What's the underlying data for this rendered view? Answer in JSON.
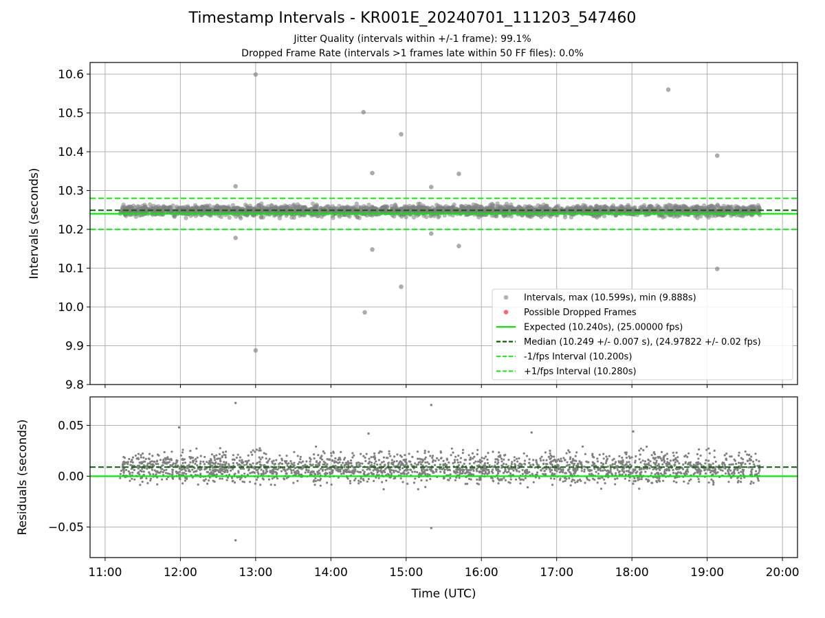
{
  "header": {
    "title": "Timestamp Intervals - KR001E_20240701_111203_547460",
    "subtitle_1": "Jitter Quality (intervals within +/-1 frame): 99.1%",
    "subtitle_2": "Dropped Frame Rate (intervals >1 frames late within 50 FF files): 0.0%"
  },
  "colors": {
    "scatter": "#808080",
    "dropped": "#ff0000",
    "expected": "#00ee00",
    "median": "#006400",
    "bounds": "#22ee22",
    "grid": "#b0b0b0"
  },
  "chart_data": [
    {
      "type": "scatter",
      "title": "Intervals",
      "xlabel": "",
      "ylabel": "Intervals (seconds)",
      "xlim": [
        "10:48",
        "20:12"
      ],
      "ylim": [
        9.8,
        10.63
      ],
      "y_ticks": [
        "9.8",
        "9.9",
        "10.0",
        "10.1",
        "10.2",
        "10.3",
        "10.4",
        "10.5",
        "10.6"
      ],
      "grid": true,
      "legend_position": "lower-right",
      "legend": [
        "Intervals, max (10.599s), min (9.888s)",
        "Possible Dropped Frames",
        "Expected (10.240s), (25.00000 fps)",
        "Median (10.249 +/- 0.007 s), (24.97822 +/- 0.02 fps)",
        "-1/fps Interval (10.200s)",
        "+1/fps Interval (10.280s)"
      ],
      "reference_lines": {
        "expected": 10.24,
        "median": 10.249,
        "lower_bound": 10.2,
        "upper_bound": 10.28
      },
      "dense_band": {
        "time_start": "11:12",
        "time_end": "19:42",
        "center": 10.248,
        "spread": 0.012
      },
      "outliers": [
        {
          "t": "12:44",
          "y": 10.311
        },
        {
          "t": "12:44",
          "y": 10.178
        },
        {
          "t": "13:00",
          "y": 10.599
        },
        {
          "t": "13:00",
          "y": 9.888
        },
        {
          "t": "14:26",
          "y": 10.502
        },
        {
          "t": "14:27",
          "y": 9.986
        },
        {
          "t": "14:33",
          "y": 10.345
        },
        {
          "t": "14:33",
          "y": 10.148
        },
        {
          "t": "14:56",
          "y": 10.445
        },
        {
          "t": "14:56",
          "y": 10.052
        },
        {
          "t": "15:20",
          "y": 10.309
        },
        {
          "t": "15:20",
          "y": 10.189
        },
        {
          "t": "15:42",
          "y": 10.343
        },
        {
          "t": "15:42",
          "y": 10.157
        },
        {
          "t": "18:29",
          "y": 10.56
        },
        {
          "t": "19:08",
          "y": 10.39
        },
        {
          "t": "19:08",
          "y": 10.098
        }
      ]
    },
    {
      "type": "scatter",
      "title": "Residuals",
      "xlabel": "Time (UTC)",
      "ylabel": "Residuals (seconds)",
      "xlim": [
        "10:48",
        "20:12"
      ],
      "ylim": [
        -0.08,
        0.078
      ],
      "y_ticks": [
        "−0.05",
        "0.00",
        "0.05"
      ],
      "x_ticks": [
        "11:00",
        "12:00",
        "13:00",
        "14:00",
        "15:00",
        "16:00",
        "17:00",
        "18:00",
        "19:00",
        "20:00"
      ],
      "grid": true,
      "reference_lines": {
        "zero": 0.0,
        "median": 0.009
      },
      "dense_band": {
        "time_start": "11:12",
        "time_end": "19:42",
        "center": 0.008,
        "spread": 0.012
      },
      "outliers": [
        {
          "t": "12:44",
          "y": 0.072
        },
        {
          "t": "12:44",
          "y": -0.063
        },
        {
          "t": "11:59",
          "y": 0.048
        },
        {
          "t": "15:20",
          "y": 0.07
        },
        {
          "t": "15:20",
          "y": -0.051
        },
        {
          "t": "18:01",
          "y": 0.044
        },
        {
          "t": "16:40",
          "y": 0.043
        },
        {
          "t": "14:30",
          "y": 0.042
        }
      ]
    }
  ]
}
